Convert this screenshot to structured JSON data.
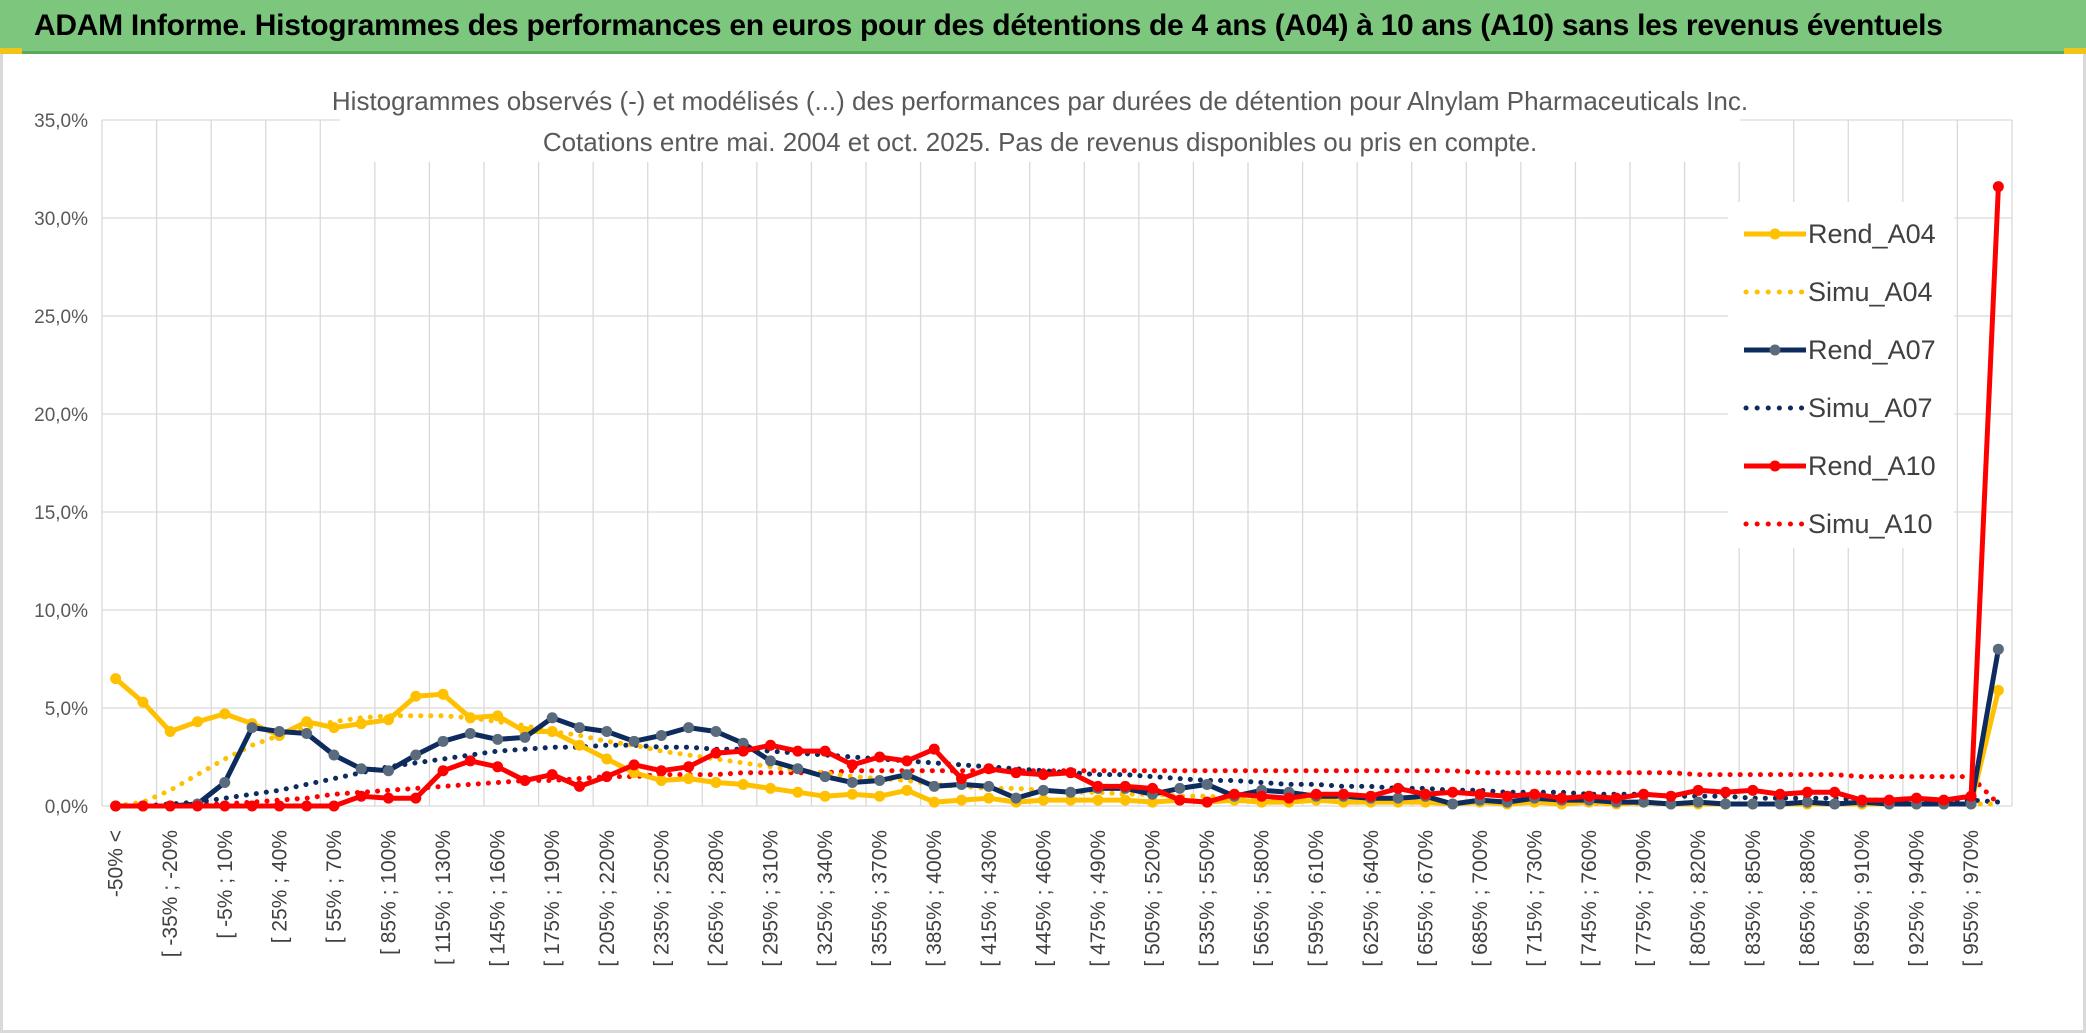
{
  "banner": {
    "title": "ADAM Informe. Histogrammes des performances en euros pour des détentions de 4 ans (A04) à 10 ans (A10) sans les revenus éventuels"
  },
  "colors": {
    "banner_bg": "#7dc67d",
    "A04": "#ffc000",
    "A07": "#0d2b5c",
    "A07_marker": "#5a6b7d",
    "A10": "#ff0000",
    "grid": "#d9d9d9",
    "axis_text": "#595959"
  },
  "chart_data": {
    "type": "line",
    "title_lines": [
      "Histogrammes observés (-) et modélisés (...) des performances par durées de détention pour Alnylam Pharmaceuticals Inc.",
      "Cotations entre mai. 2004 et oct. 2025. Pas de revenus disponibles ou pris en compte."
    ],
    "ylim": [
      0,
      35
    ],
    "y_ticks": [
      "0,0%",
      "5,0%",
      "10,0%",
      "15,0%",
      "20,0%",
      "25,0%",
      "30,0%",
      "35,0%"
    ],
    "x_tick_labels": [
      "-50% <",
      "[ -35% ; -20%",
      "[ -5% ; 10%",
      "[ 25% ; 40%",
      "[ 55% ; 70%",
      "[ 85% ; 100%",
      "[ 115% ; 130%",
      "[ 145% ; 160%",
      "[ 175% ; 190%",
      "[ 205% ; 220%",
      "[ 235% ; 250%",
      "[ 265% ; 280%",
      "[ 295% ; 310%",
      "[ 325% ; 340%",
      "[ 355% ; 370%",
      "[ 385% ; 400%",
      "[ 415% ; 430%",
      "[ 445% ; 460%",
      "[ 475% ; 490%",
      "[ 505% ; 520%",
      "[ 535% ; 550%",
      "[ 565% ; 580%",
      "[ 595% ; 610%",
      "[ 625% ; 640%",
      "[ 655% ; 670%",
      "[ 685% ; 700%",
      "[ 715% ; 730%",
      "[ 745% ; 760%",
      "[ 775% ; 790%",
      "[ 805% ; 820%",
      "[ 835% ; 850%",
      "[ 865% ; 880%",
      "[ 895% ; 910%",
      "[ 925% ; 940%",
      "[ 955% ; 970%"
    ],
    "n_points": 70,
    "series": [
      {
        "name": "Rend_A04",
        "style": "solid",
        "color": "#ffc000",
        "values": [
          6.5,
          5.3,
          3.8,
          4.3,
          4.7,
          4.2,
          3.6,
          4.3,
          4.0,
          4.2,
          4.4,
          5.6,
          5.7,
          4.5,
          4.6,
          3.8,
          3.8,
          3.1,
          2.4,
          1.7,
          1.3,
          1.4,
          1.2,
          1.1,
          0.9,
          0.7,
          0.5,
          0.6,
          0.5,
          0.8,
          0.2,
          0.3,
          0.4,
          0.2,
          0.3,
          0.3,
          0.3,
          0.3,
          0.2,
          0.3,
          0.2,
          0.3,
          0.2,
          0.2,
          0.3,
          0.2,
          0.2,
          0.2,
          0.2,
          0.1,
          0.2,
          0.1,
          0.2,
          0.1,
          0.2,
          0.1,
          0.2,
          0.1,
          0.1,
          0.1,
          0.1,
          0.1,
          0.1,
          0.1,
          0.1,
          0.1,
          0.1,
          0.1,
          0.1,
          5.9
        ]
      },
      {
        "name": "Simu_A04",
        "style": "dotted",
        "color": "#ffc000",
        "values": [
          0.0,
          0.2,
          0.8,
          1.6,
          2.4,
          3.1,
          3.6,
          4.0,
          4.3,
          4.5,
          4.6,
          4.6,
          4.6,
          4.5,
          4.3,
          4.1,
          3.8,
          3.6,
          3.3,
          3.1,
          2.8,
          2.6,
          2.4,
          2.2,
          2.0,
          1.8,
          1.7,
          1.5,
          1.4,
          1.3,
          1.1,
          1.0,
          0.9,
          0.9,
          0.8,
          0.7,
          0.7,
          0.6,
          0.6,
          0.5,
          0.5,
          0.4,
          0.4,
          0.4,
          0.3,
          0.3,
          0.3,
          0.3,
          0.2,
          0.2,
          0.2,
          0.2,
          0.2,
          0.2,
          0.1,
          0.1,
          0.1,
          0.1,
          0.1,
          0.1,
          0.1,
          0.1,
          0.1,
          0.1,
          0.1,
          0.1,
          0.1,
          0.1,
          0.1,
          0.1
        ]
      },
      {
        "name": "Rend_A07",
        "style": "solid",
        "color": "#0d2b5c",
        "marker": "#5a6b7d",
        "values": [
          0.0,
          0.0,
          0.0,
          0.1,
          1.2,
          4.0,
          3.8,
          3.7,
          2.6,
          1.9,
          1.8,
          2.6,
          3.3,
          3.7,
          3.4,
          3.5,
          4.5,
          4.0,
          3.8,
          3.3,
          3.6,
          4.0,
          3.8,
          3.2,
          2.3,
          1.9,
          1.5,
          1.2,
          1.3,
          1.6,
          1.0,
          1.1,
          1.0,
          0.4,
          0.8,
          0.7,
          0.9,
          0.9,
          0.6,
          0.9,
          1.1,
          0.5,
          0.8,
          0.7,
          0.5,
          0.5,
          0.4,
          0.4,
          0.5,
          0.1,
          0.3,
          0.2,
          0.4,
          0.3,
          0.3,
          0.2,
          0.2,
          0.1,
          0.2,
          0.1,
          0.1,
          0.1,
          0.2,
          0.1,
          0.2,
          0.1,
          0.1,
          0.1,
          0.1,
          8.0
        ]
      },
      {
        "name": "Simu_A07",
        "style": "dotted",
        "color": "#0d2b5c",
        "values": [
          0.0,
          0.0,
          0.1,
          0.2,
          0.4,
          0.6,
          0.8,
          1.1,
          1.4,
          1.7,
          2.0,
          2.2,
          2.4,
          2.6,
          2.8,
          2.9,
          3.0,
          3.0,
          3.1,
          3.1,
          3.0,
          3.0,
          2.9,
          2.9,
          2.8,
          2.7,
          2.6,
          2.5,
          2.4,
          2.3,
          2.2,
          2.1,
          2.0,
          1.9,
          1.8,
          1.7,
          1.6,
          1.6,
          1.5,
          1.4,
          1.3,
          1.3,
          1.2,
          1.1,
          1.1,
          1.0,
          1.0,
          0.9,
          0.9,
          0.8,
          0.8,
          0.7,
          0.7,
          0.7,
          0.6,
          0.6,
          0.6,
          0.5,
          0.5,
          0.5,
          0.4,
          0.4,
          0.4,
          0.4,
          0.3,
          0.3,
          0.3,
          0.3,
          0.3,
          0.2
        ]
      },
      {
        "name": "Rend_A10",
        "style": "solid",
        "color": "#ff0000",
        "values": [
          0.0,
          0.0,
          0.0,
          0.0,
          0.0,
          0.0,
          0.0,
          0.0,
          0.0,
          0.5,
          0.4,
          0.4,
          1.8,
          2.3,
          2.0,
          1.3,
          1.6,
          1.0,
          1.5,
          2.1,
          1.8,
          2.0,
          2.7,
          2.8,
          3.1,
          2.8,
          2.8,
          2.1,
          2.5,
          2.3,
          2.9,
          1.4,
          1.9,
          1.7,
          1.6,
          1.7,
          1.0,
          1.0,
          0.9,
          0.3,
          0.2,
          0.6,
          0.5,
          0.4,
          0.6,
          0.6,
          0.5,
          0.9,
          0.6,
          0.7,
          0.6,
          0.5,
          0.6,
          0.4,
          0.5,
          0.4,
          0.6,
          0.5,
          0.8,
          0.7,
          0.8,
          0.6,
          0.7,
          0.7,
          0.3,
          0.3,
          0.4,
          0.3,
          0.5,
          31.6
        ]
      },
      {
        "name": "Simu_A10",
        "style": "dotted",
        "color": "#ff0000",
        "values": [
          0.0,
          0.0,
          0.0,
          0.1,
          0.1,
          0.2,
          0.3,
          0.4,
          0.6,
          0.7,
          0.8,
          0.9,
          1.0,
          1.1,
          1.2,
          1.3,
          1.3,
          1.4,
          1.5,
          1.5,
          1.6,
          1.6,
          1.6,
          1.7,
          1.7,
          1.7,
          1.7,
          1.8,
          1.8,
          1.8,
          1.8,
          1.8,
          1.8,
          1.8,
          1.8,
          1.8,
          1.8,
          1.8,
          1.8,
          1.8,
          1.8,
          1.8,
          1.8,
          1.8,
          1.8,
          1.8,
          1.8,
          1.8,
          1.8,
          1.8,
          1.7,
          1.7,
          1.7,
          1.7,
          1.7,
          1.7,
          1.7,
          1.7,
          1.6,
          1.6,
          1.6,
          1.6,
          1.6,
          1.6,
          1.5,
          1.5,
          1.5,
          1.5,
          1.5,
          0.1
        ]
      }
    ],
    "legend": [
      "Rend_A04",
      "Simu_A04",
      "Rend_A07",
      "Simu_A07",
      "Rend_A10",
      "Simu_A10"
    ],
    "legend_position": "right"
  }
}
